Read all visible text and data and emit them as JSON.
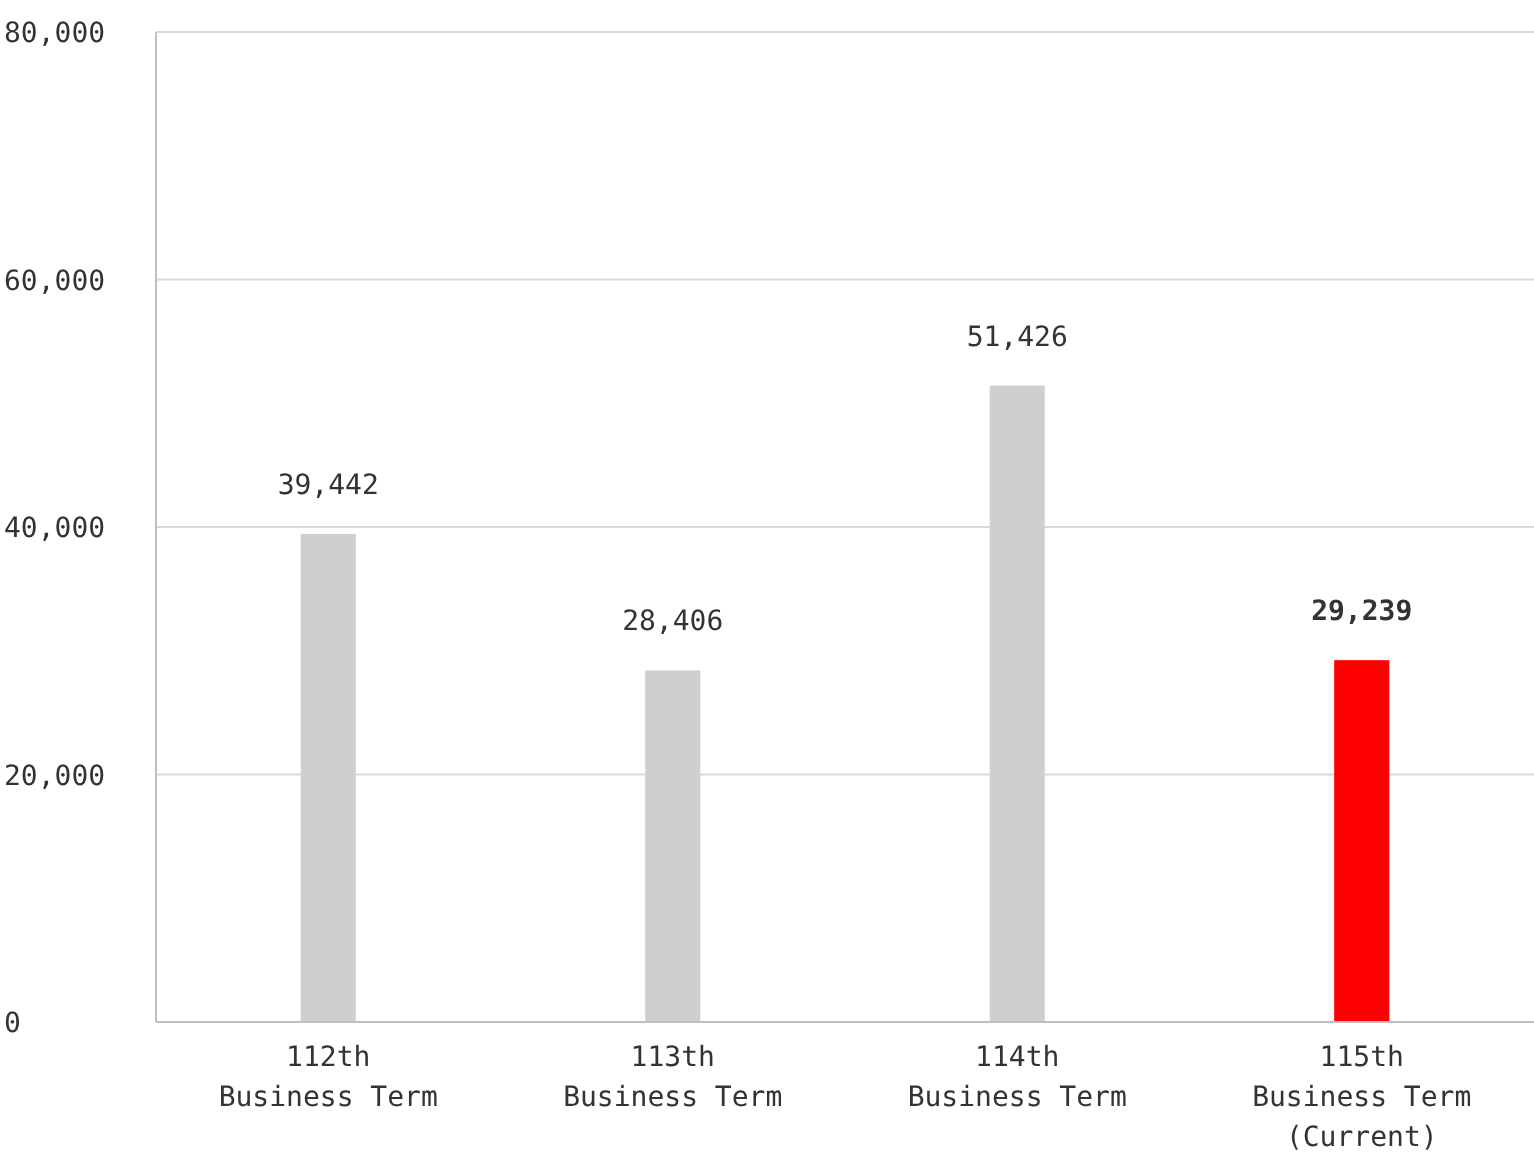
{
  "chart_data": {
    "type": "bar",
    "categories": [
      "112th\nBusiness Term",
      "113th\nBusiness Term",
      "114th\nBusiness Term",
      "115th\nBusiness Term\n(Current)"
    ],
    "values": [
      39442,
      28406,
      51426,
      29239
    ],
    "colors": [
      "#d0cece",
      "#d0cece",
      "#d0cece",
      "#ff0000"
    ],
    "value_labels": [
      "39,442",
      "28,406",
      "51,426",
      "29,239"
    ],
    "ylim": [
      0,
      80000
    ],
    "yticks": [
      {
        "value": 0,
        "label": "0"
      },
      {
        "value": 20000,
        "label": "20,000"
      },
      {
        "value": 40000,
        "label": "40,000"
      },
      {
        "value": 60000,
        "label": "60,000"
      },
      {
        "value": 80000,
        "label": "80,000"
      }
    ],
    "grid": "y"
  }
}
